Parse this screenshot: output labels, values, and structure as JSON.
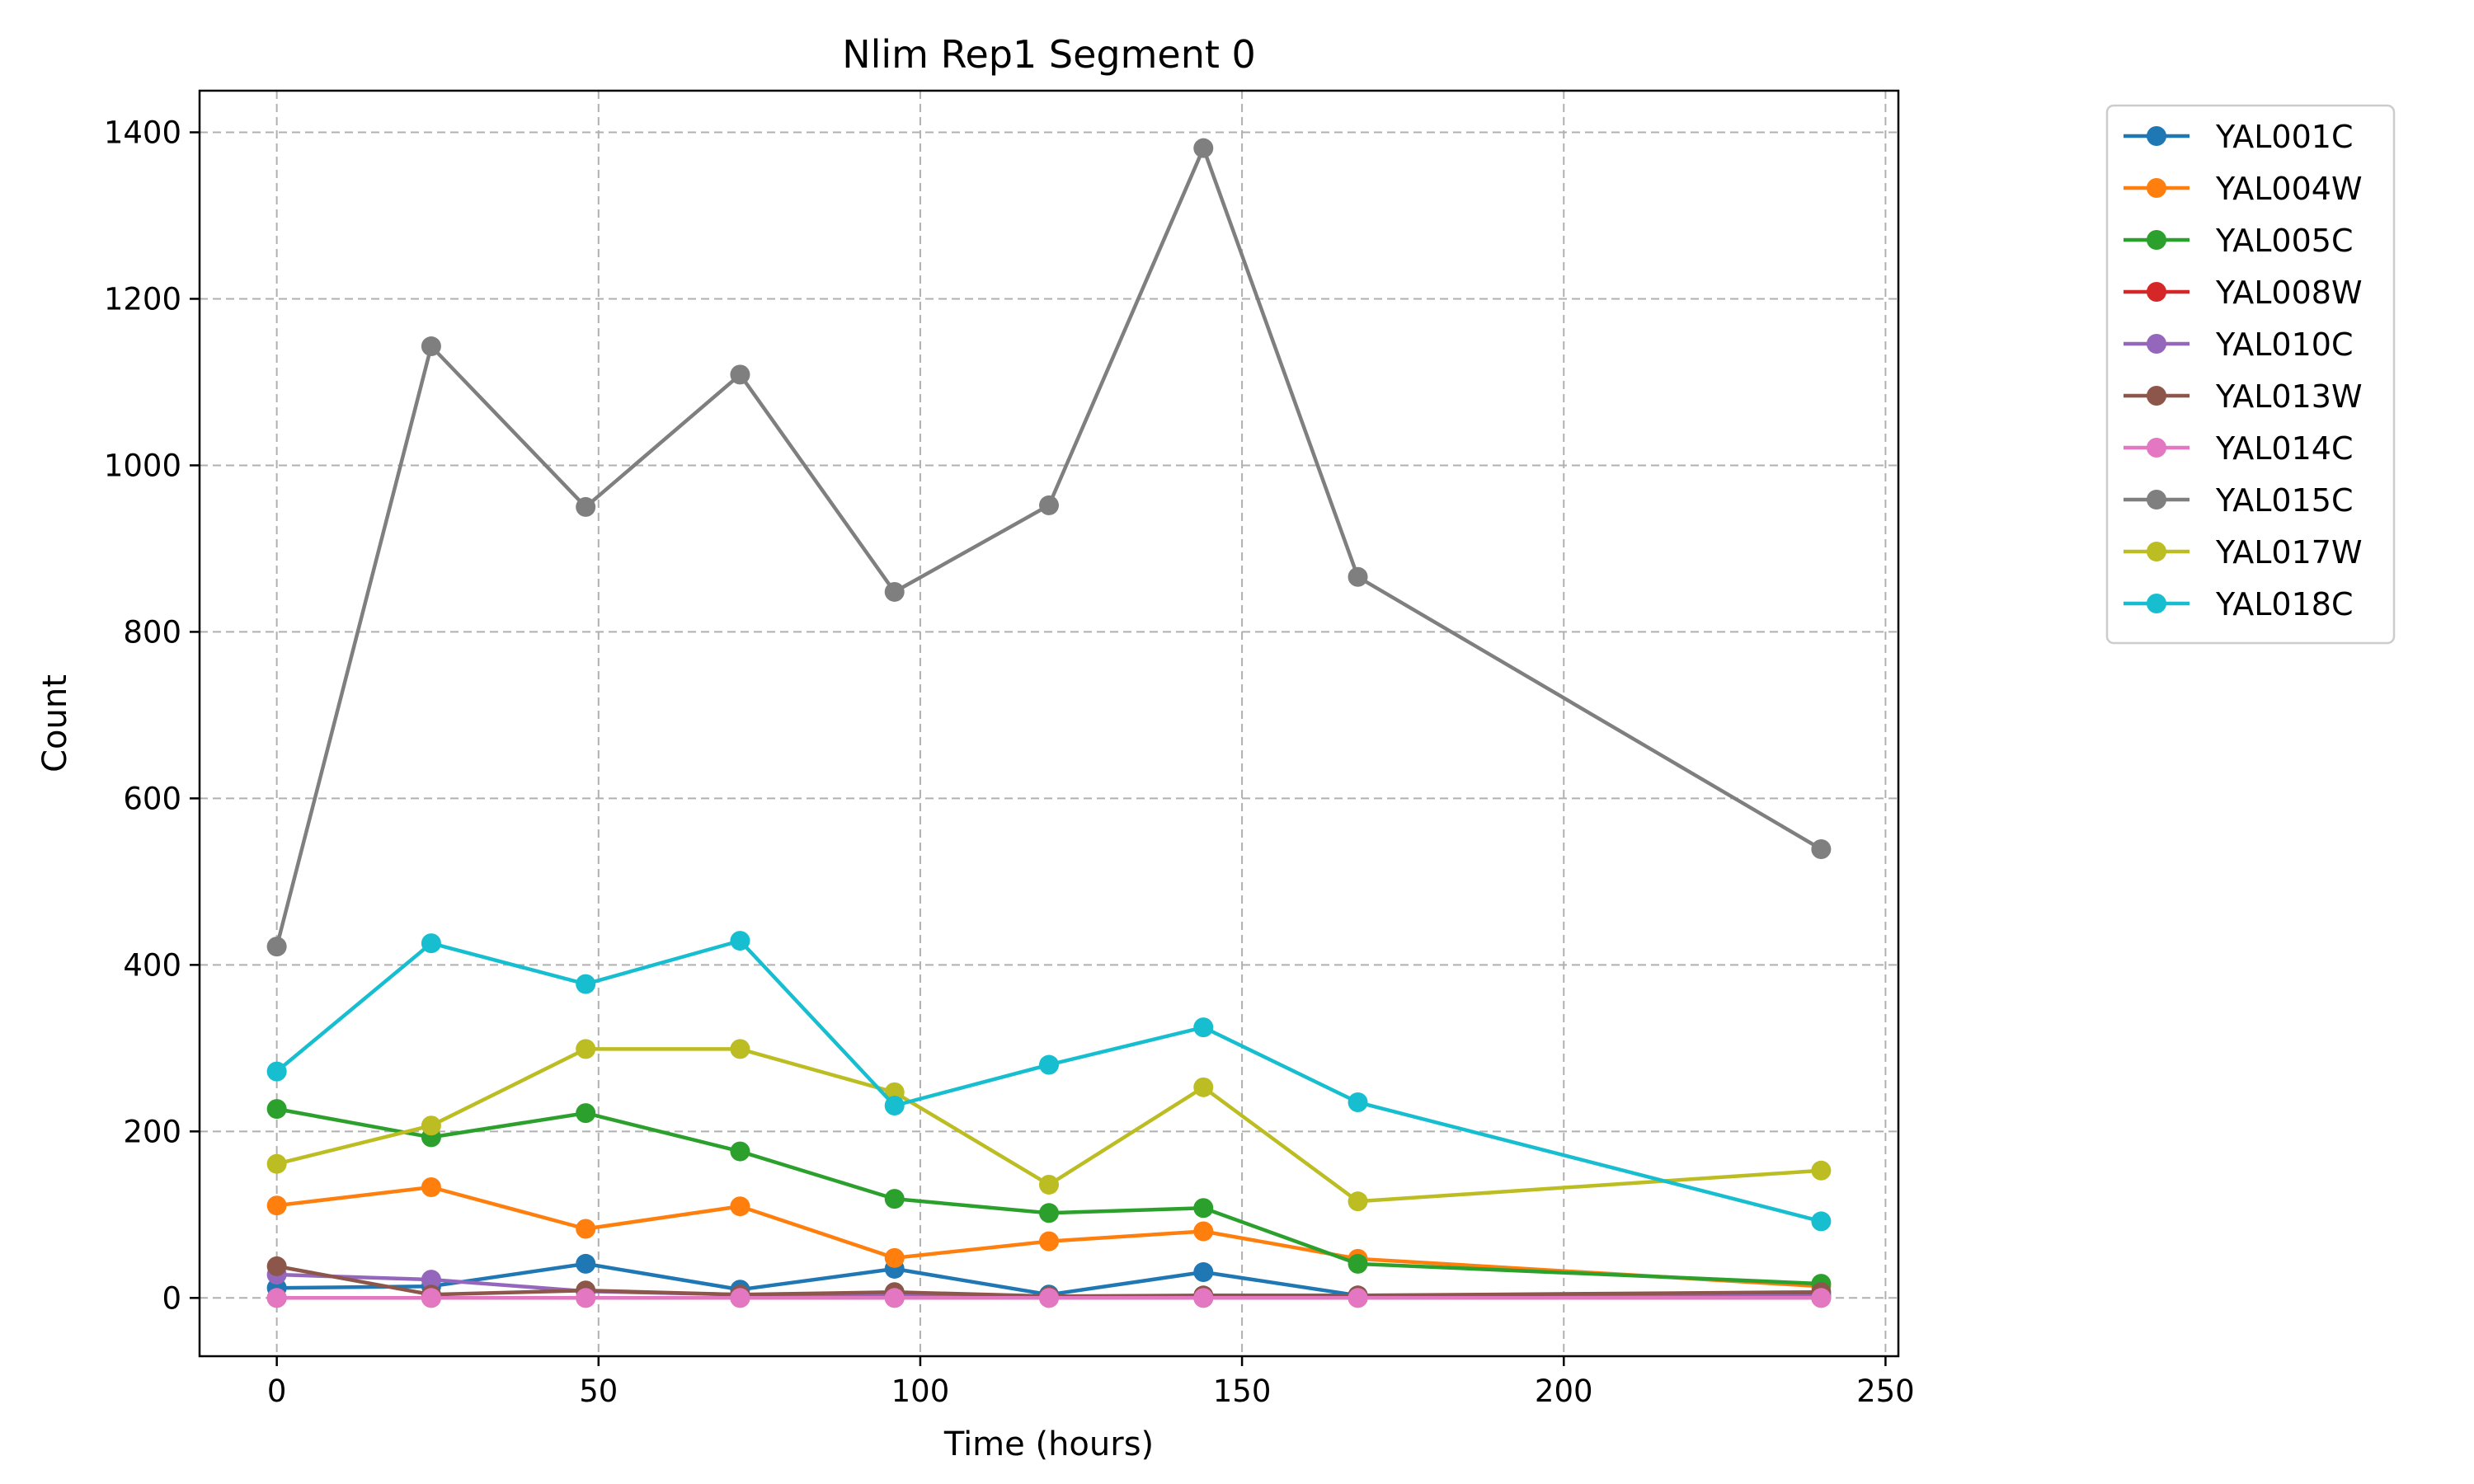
{
  "chart_data": {
    "type": "line",
    "title": "Nlim Rep1 Segment 0",
    "xlabel": "Time (hours)",
    "ylabel": "Count",
    "xlim": [
      -12,
      252
    ],
    "ylim": [
      -70,
      1450
    ],
    "xticks": [
      0,
      50,
      100,
      150,
      200,
      250
    ],
    "yticks": [
      0,
      200,
      400,
      600,
      800,
      1000,
      1200,
      1400
    ],
    "grid": true,
    "legend_position": "outside-top-right",
    "x": [
      0,
      24,
      48,
      72,
      96,
      120,
      144,
      168,
      240
    ],
    "series": [
      {
        "name": "YAL001C",
        "color": "#1f77b4",
        "values": [
          12,
          14,
          41,
          10,
          35,
          4,
          31,
          3,
          4
        ]
      },
      {
        "name": "YAL004W",
        "color": "#ff7f0e",
        "values": [
          111,
          133,
          83,
          110,
          48,
          68,
          80,
          47,
          14
        ]
      },
      {
        "name": "YAL005C",
        "color": "#2ca02c",
        "values": [
          227,
          193,
          222,
          176,
          119,
          102,
          108,
          41,
          17
        ]
      },
      {
        "name": "YAL008W",
        "color": "#d62728",
        "values": [
          0,
          0,
          0,
          0,
          0,
          0,
          0,
          0,
          0
        ]
      },
      {
        "name": "YAL010C",
        "color": "#9467bd",
        "values": [
          28,
          22,
          8,
          4,
          4,
          2,
          2,
          2,
          2
        ]
      },
      {
        "name": "YAL013W",
        "color": "#8c564b",
        "values": [
          38,
          4,
          9,
          4,
          7,
          2,
          3,
          3,
          7
        ]
      },
      {
        "name": "YAL014C",
        "color": "#e377c2",
        "values": [
          0,
          0,
          0,
          0,
          0,
          0,
          0,
          0,
          0
        ]
      },
      {
        "name": "YAL015C",
        "color": "#7f7f7f",
        "values": [
          422,
          1143,
          950,
          1109,
          848,
          952,
          1381,
          866,
          539
        ]
      },
      {
        "name": "YAL017W",
        "color": "#bcbd22",
        "values": [
          161,
          207,
          299,
          299,
          247,
          136,
          253,
          116,
          153
        ]
      },
      {
        "name": "YAL018C",
        "color": "#17becf",
        "values": [
          272,
          426,
          377,
          429,
          231,
          280,
          325,
          235,
          92
        ]
      }
    ]
  }
}
